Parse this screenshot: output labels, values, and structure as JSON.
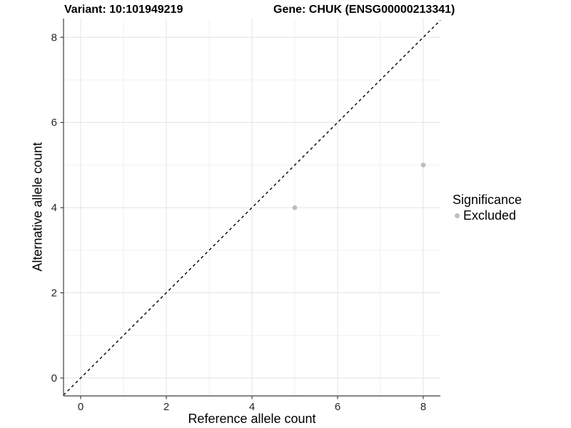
{
  "titles": {
    "left": "Variant: 10:101949219",
    "right": "Gene: CHUK (ENSG00000213341)"
  },
  "legend": {
    "title": "Significance",
    "items": [
      {
        "label": "Excluded",
        "color": "#bebebe"
      }
    ]
  },
  "chart_data": {
    "type": "scatter",
    "titles": [
      "Variant: 10:101949219",
      "Gene: CHUK (ENSG00000213341)"
    ],
    "xlabel": "Reference allele count",
    "ylabel": "Alternative allele count",
    "xlim": [
      -0.4,
      8.4
    ],
    "ylim": [
      -0.42,
      8.44
    ],
    "x_ticks": [
      0,
      2,
      4,
      6,
      8
    ],
    "y_ticks": [
      0,
      2,
      4,
      6,
      8
    ],
    "x_minor": [
      1,
      3,
      5,
      7
    ],
    "y_minor": [
      1,
      3,
      5,
      7
    ],
    "grid": true,
    "legend_title": "Significance",
    "legend_position": "right",
    "identity_line": {
      "slope": 1,
      "intercept": 0,
      "style": "dashed",
      "color": "#000000"
    },
    "series": [
      {
        "name": "Excluded",
        "color": "#bebebe",
        "points": [
          {
            "x": 5,
            "y": 4
          },
          {
            "x": 8,
            "y": 5
          }
        ]
      }
    ]
  },
  "colors": {
    "background": "#ffffff",
    "grid_major": "#e3e3e3",
    "grid_minor": "#f1f1f1",
    "axis": "#3f3f3f",
    "tick_text": "#262626",
    "point": "#bebebe"
  }
}
